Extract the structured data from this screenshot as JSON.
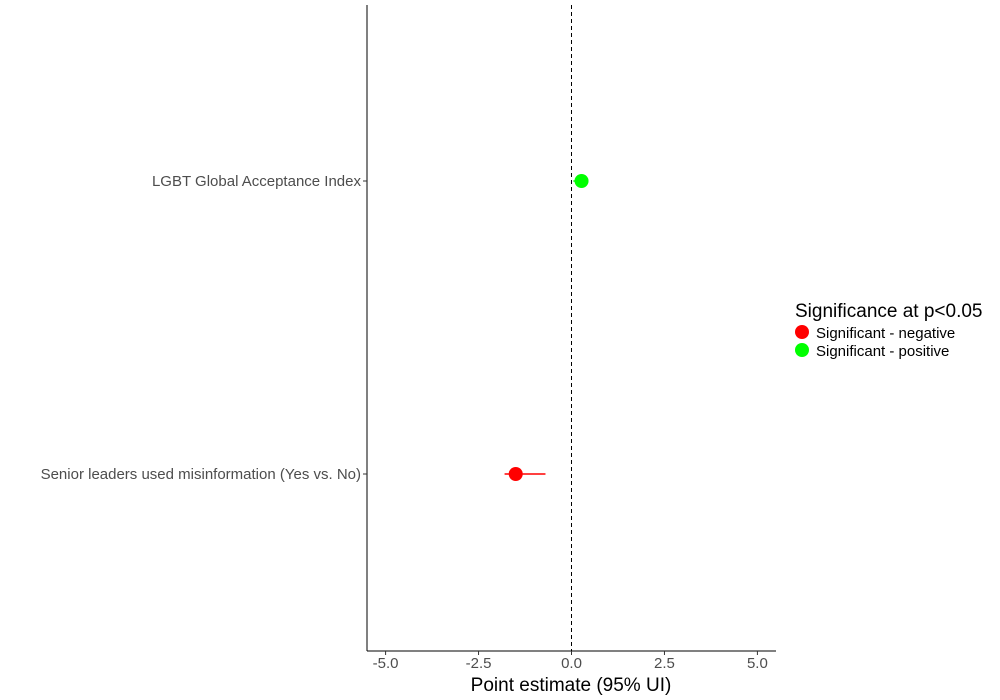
{
  "chart_data": {
    "type": "scatter",
    "subtype": "forest-plot",
    "title": "",
    "xlabel": "Point estimate (95% UI)",
    "ylabel": "",
    "xlim": [
      -5.5,
      5.5
    ],
    "xticks": [
      -5.0,
      -2.5,
      0.0,
      2.5,
      5.0
    ],
    "xtick_labels": [
      "-5.0",
      "-2.5",
      "0.0",
      "2.5",
      "5.0"
    ],
    "reference_line": {
      "x": 0,
      "style": "dashed"
    },
    "grid": false,
    "categories": [
      "LGBT Global Acceptance Index",
      "Senior leaders used misinformation (Yes vs. No)"
    ],
    "points": [
      {
        "category": "LGBT Global Acceptance Index",
        "estimate": 0.27,
        "lower": 0.05,
        "upper": 0.45,
        "significance": "Significant - positive"
      },
      {
        "category": "Senior leaders used misinformation (Yes vs. No)",
        "estimate": -1.5,
        "lower": -1.8,
        "upper": -0.7,
        "significance": "Significant - negative"
      }
    ],
    "legend": {
      "title": "Significance at p<0.05",
      "placement": "right",
      "entries": [
        {
          "label": "Significant - negative",
          "color": "#ff0000"
        },
        {
          "label": "Significant - positive",
          "color": "#00ff00"
        }
      ]
    }
  }
}
